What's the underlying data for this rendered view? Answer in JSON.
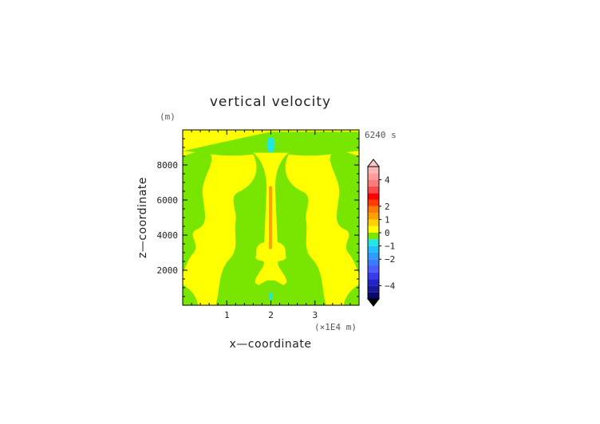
{
  "chart_data": {
    "type": "heatmap",
    "title": "vertical velocity",
    "time_label": "6240 s",
    "xlabel": "x—coordinate",
    "ylabel": "z—coordinate",
    "x_unit": "(×1E4 m)",
    "y_unit": "(m)",
    "x_range": [
      0,
      4
    ],
    "y_range": [
      0,
      10000
    ],
    "x_ticks": [
      1,
      2,
      3
    ],
    "x_tick_labels": [
      "1",
      "2",
      "3"
    ],
    "y_ticks": [
      2000,
      4000,
      6000,
      8000
    ],
    "y_tick_labels": [
      "2000",
      "4000",
      "6000",
      "8000"
    ],
    "colorbar": {
      "levels": [
        -5,
        -4.5,
        -4,
        -3.5,
        -3,
        -2.5,
        -2,
        -1.5,
        -1,
        -0.5,
        0,
        0.5,
        1,
        1.5,
        2,
        2.5,
        3,
        3.5,
        4,
        4.5,
        5
      ],
      "colors": [
        "#0a0a6a",
        "#1818a0",
        "#2424c8",
        "#3a3af0",
        "#4a5cff",
        "#3a7cff",
        "#2c9cff",
        "#20c0ff",
        "#20e6e6",
        "#78e600",
        "#ffff00",
        "#ffd200",
        "#ffa000",
        "#ff7a00",
        "#ff3c00",
        "#ff0000",
        "#ff4a4a",
        "#ff7a7a",
        "#ff9c9c",
        "#ffb4b4"
      ],
      "over_color": "#ffc8c8",
      "under_color": "#000000",
      "tick_values": [
        4,
        2,
        1,
        0,
        -1,
        -2,
        -4
      ],
      "tick_labels": [
        "4",
        "2",
        "1",
        "0",
        "−1",
        "−2",
        "−4"
      ]
    },
    "field_regions": [
      {
        "label": "background",
        "value": 0.25
      },
      {
        "label": "updraft column center",
        "value": 1.2,
        "x": 1.99,
        "z_range": [
          3200,
          6800
        ]
      },
      {
        "label": "downdraft top",
        "value": -1.0,
        "x": 2.0,
        "z_range": [
          8700,
          9600
        ]
      },
      {
        "label": "downdraft bottom",
        "value": -0.8,
        "x": 2.0,
        "z_range": [
          300,
          750
        ]
      }
    ],
    "grid": false
  }
}
